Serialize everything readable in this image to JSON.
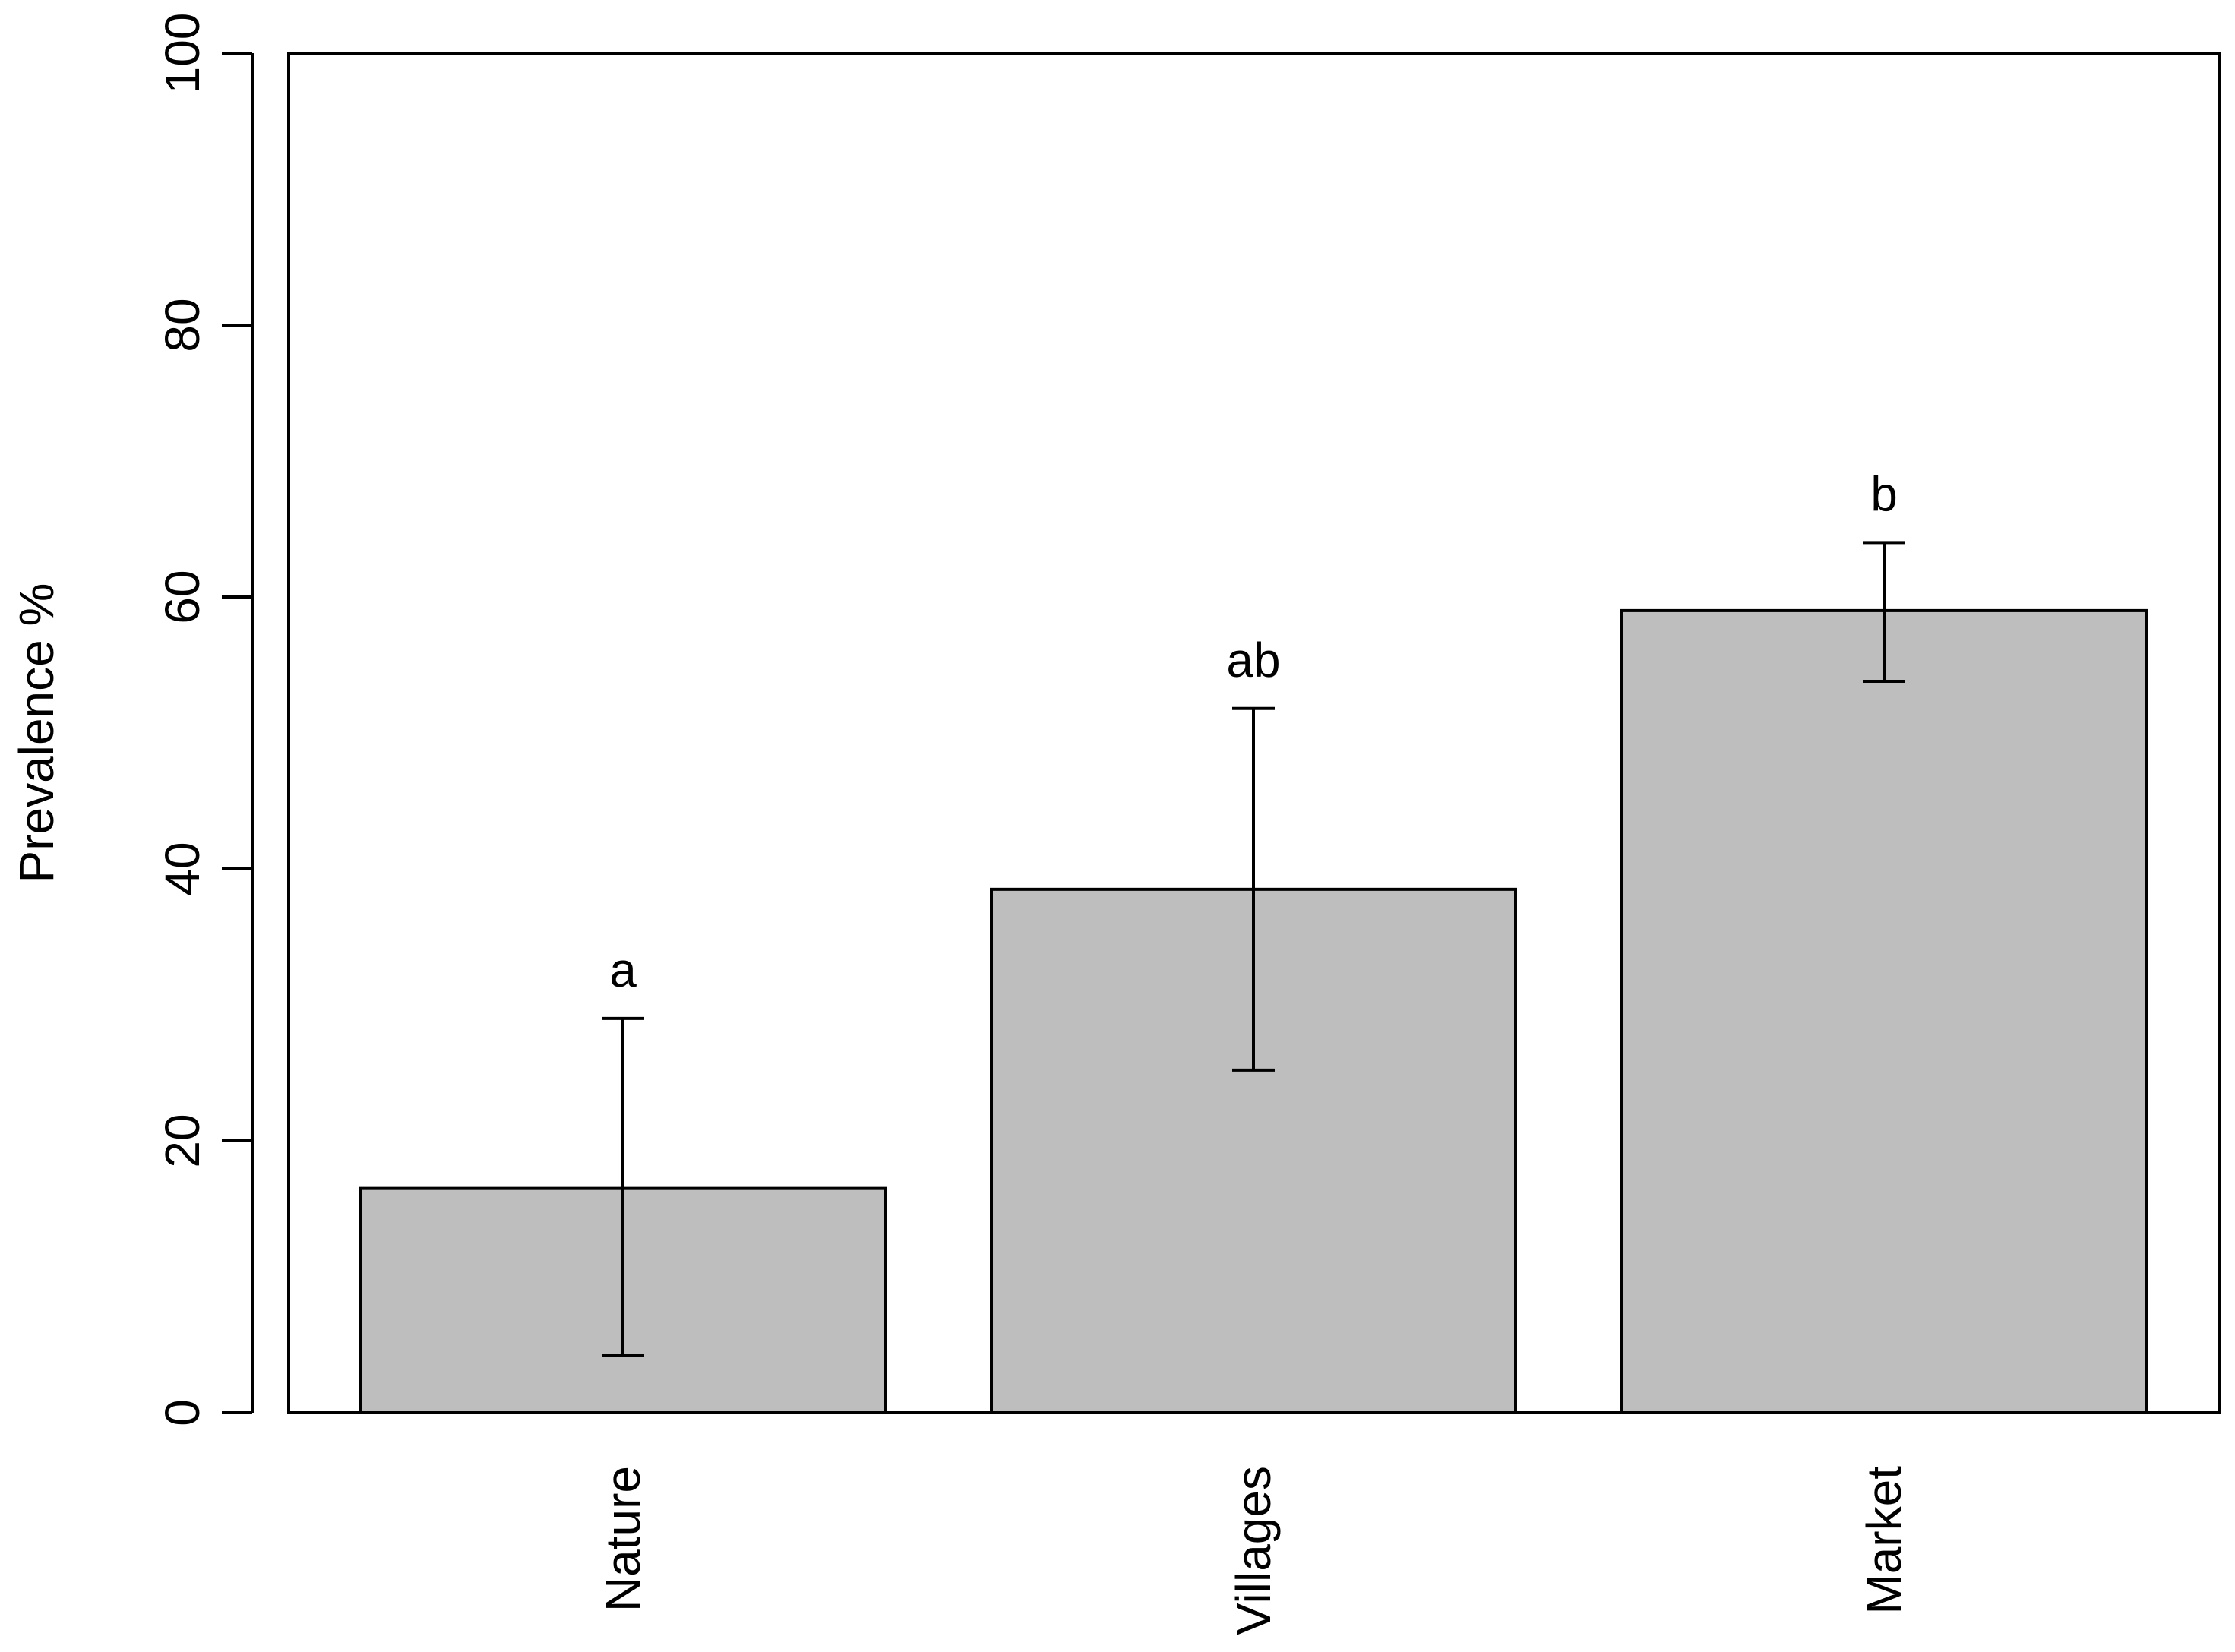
{
  "chart_data": {
    "type": "bar",
    "title": "",
    "xlabel": "",
    "ylabel": "Prevalence %",
    "ylim": [
      0,
      100
    ],
    "yticks": [
      0,
      20,
      40,
      60,
      80,
      100
    ],
    "categories": [
      "Nature",
      "Villages",
      "Market"
    ],
    "values": [
      16.5,
      38.5,
      59
    ],
    "error_low": [
      4.2,
      25.2,
      53.8
    ],
    "error_high": [
      29,
      51.8,
      64
    ],
    "significance_letters": [
      "a",
      "ab",
      "b"
    ],
    "bar_color": "#bebebe",
    "grid": false,
    "legend": "none"
  }
}
